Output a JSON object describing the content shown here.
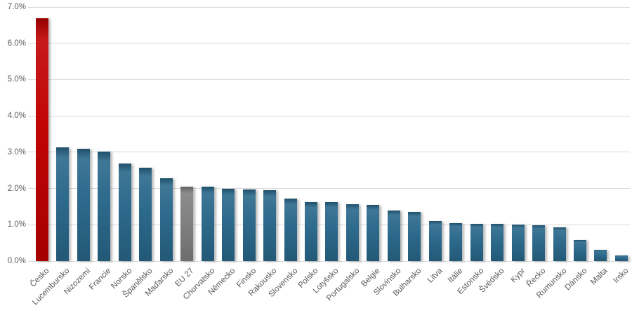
{
  "chart_data": {
    "type": "bar",
    "title": "",
    "xlabel": "",
    "ylabel": "",
    "ylim": [
      0,
      7
    ],
    "ytick_step": 1,
    "ytick_labels": [
      "0.0%",
      "1.0%",
      "2.0%",
      "3.0%",
      "4.0%",
      "5.0%",
      "6.0%",
      "7.0%"
    ],
    "grid": true,
    "legend": "none",
    "categories": [
      "Česko",
      "Lucembursko",
      "Nizozemí",
      "Francie",
      "Norsko",
      "Španělsko",
      "Maďarsko",
      "EU 27",
      "Chorvatsko",
      "Německo",
      "Finsko",
      "Rakousko",
      "Slovensko",
      "Polsko",
      "Lotyšsko",
      "Portugalsko",
      "Belgie",
      "Slovinsko",
      "Bulharsko",
      "Litva",
      "Itálie",
      "Estonsko",
      "Švédsko",
      "Kypr",
      "Řecko",
      "Rumunsko",
      "Dánsko",
      "Malta",
      "Irsko"
    ],
    "values": [
      6.7,
      3.13,
      3.1,
      3.02,
      2.69,
      2.57,
      2.28,
      2.05,
      2.05,
      2.0,
      1.97,
      1.96,
      1.72,
      1.63,
      1.62,
      1.57,
      1.55,
      1.39,
      1.35,
      1.1,
      1.04,
      1.03,
      1.02,
      1.0,
      0.98,
      0.93,
      0.58,
      0.31,
      0.15
    ],
    "value_format": "percent",
    "bar_colors": {
      "default": "#29678a",
      "by_category": {
        "Česko": "#c00000",
        "EU 27": "#7f7f7f"
      }
    }
  },
  "colors": {
    "background": "#ffffff",
    "gridline": "#d9d9d9",
    "axis_label": "#595959"
  }
}
